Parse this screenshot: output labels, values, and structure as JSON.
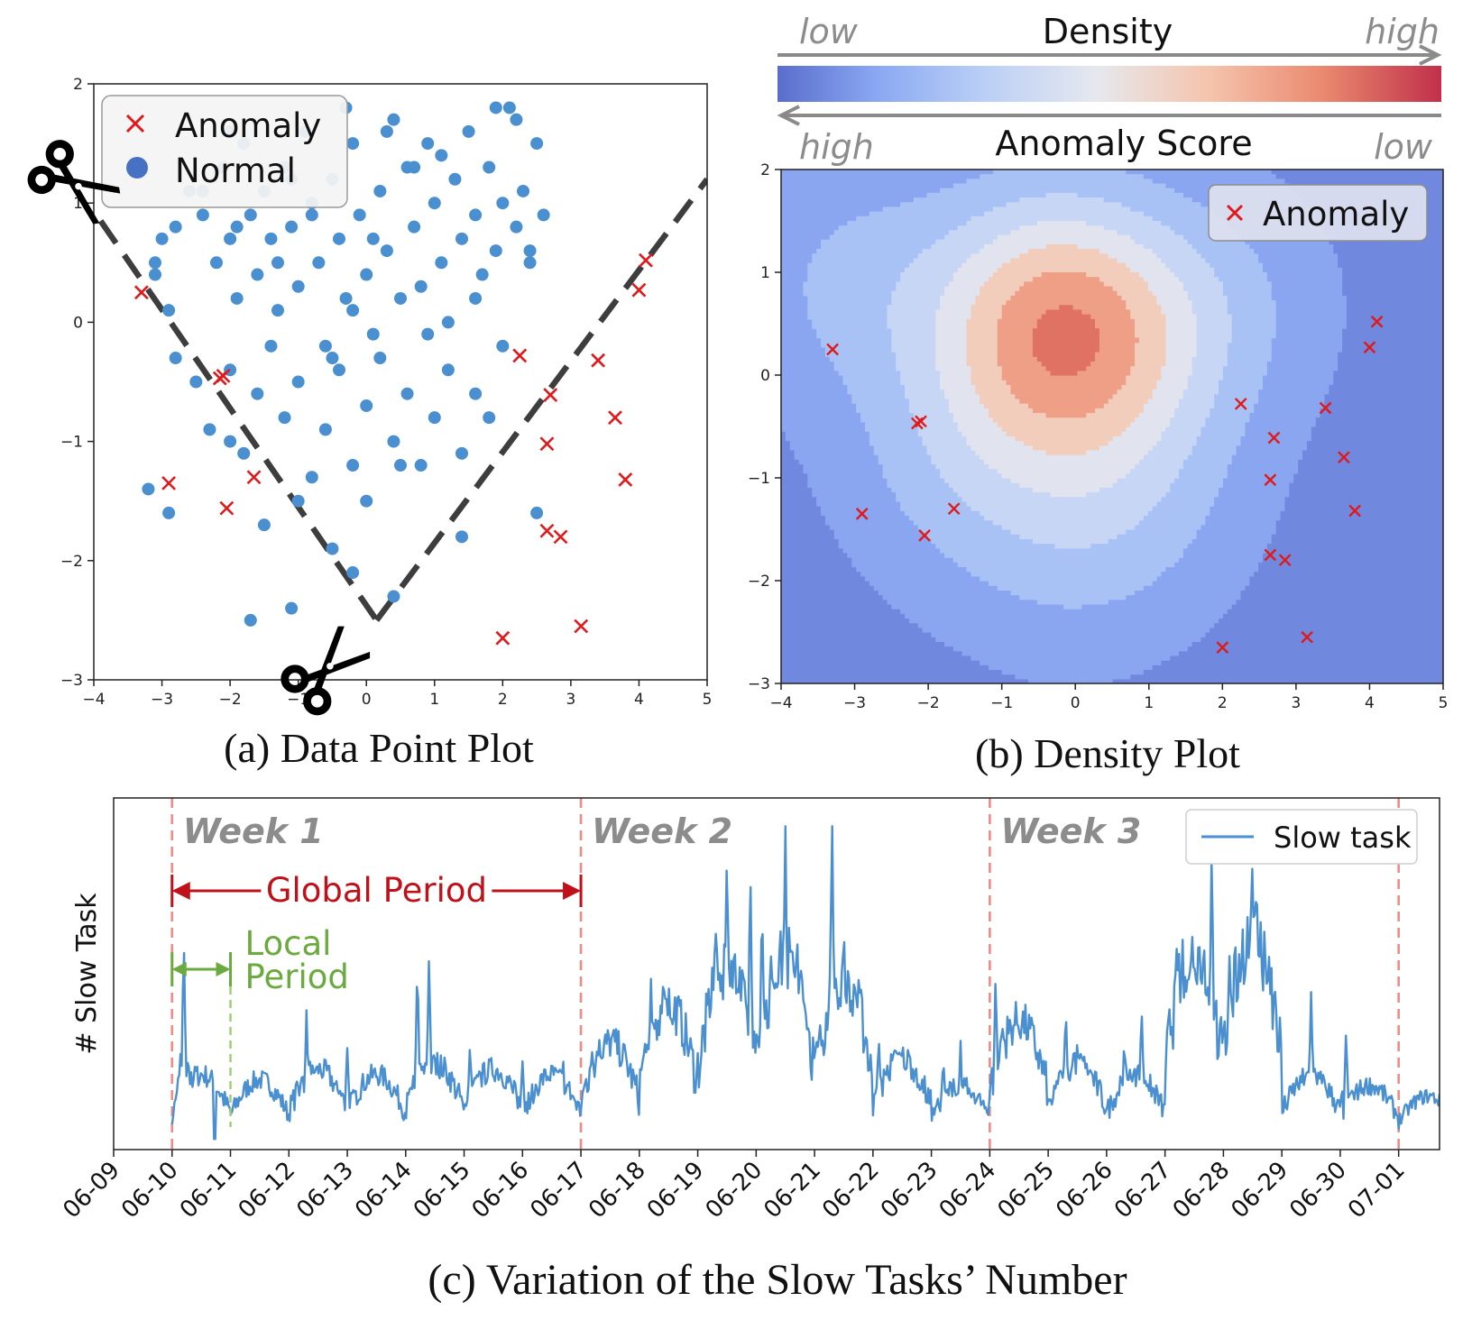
{
  "figure": {
    "captions": {
      "a": "(a) Data Point Plot",
      "b": "(b) Density Plot",
      "c": "(c) Variation of the Slow Tasks’ Number"
    }
  },
  "colors": {
    "normal": "#4a8fcf",
    "anomaly": "#e0191b",
    "cut_line": "#3d3d3d",
    "density_low": "#6f84dc",
    "density_high": "#c0304a",
    "series": "#4a8fcf",
    "week_line": "#f08a85",
    "global_period": "#c0101a",
    "local_period": "#6aaa3e",
    "week_text": "#8c8c8c"
  },
  "chart_data": [
    {
      "id": "a",
      "type": "scatter",
      "title": "(a) Data Point Plot",
      "xlim": [
        -4,
        5
      ],
      "ylim": [
        -3,
        2
      ],
      "xticks": [
        -4,
        -3,
        -2,
        -1,
        0,
        1,
        2,
        3,
        4,
        5
      ],
      "yticks": [
        -3,
        -2,
        -1,
        0,
        1,
        2
      ],
      "legend": {
        "position": "top-left",
        "labels": [
          "Anomaly",
          "Normal"
        ]
      },
      "cut_lines": [
        {
          "from": [
            -3.9,
            0.85
          ],
          "to": [
            0.15,
            -2.5
          ]
        },
        {
          "from": [
            0.15,
            -2.5
          ],
          "to": [
            5,
            1.2
          ]
        }
      ],
      "scissors_icons": 2,
      "anomalies": [
        [
          -3.3,
          0.25
        ],
        [
          -2.9,
          -1.35
        ],
        [
          -2.15,
          -0.47
        ],
        [
          -2.1,
          -0.45
        ],
        [
          -2.05,
          -1.56
        ],
        [
          -1.65,
          -1.3
        ],
        [
          2.0,
          -2.65
        ],
        [
          2.25,
          -0.28
        ],
        [
          2.65,
          -1.02
        ],
        [
          2.7,
          -0.61
        ],
        [
          2.65,
          -1.75
        ],
        [
          2.85,
          -1.8
        ],
        [
          3.15,
          -2.55
        ],
        [
          3.4,
          -0.32
        ],
        [
          3.65,
          -0.8
        ],
        [
          3.8,
          -1.32
        ],
        [
          4.0,
          0.27
        ],
        [
          4.1,
          0.52
        ]
      ],
      "normal": [
        [
          -3.1,
          0.5
        ],
        [
          -3.0,
          0.7
        ],
        [
          -2.9,
          0.1
        ],
        [
          -2.8,
          0.8
        ],
        [
          -2.6,
          1.1
        ],
        [
          -2.4,
          0.9
        ],
        [
          -2.2,
          0.5
        ],
        [
          -2.1,
          1.3
        ],
        [
          -2.0,
          0.7
        ],
        [
          -1.9,
          0.2
        ],
        [
          -1.8,
          1.5
        ],
        [
          -1.7,
          0.9
        ],
        [
          -1.6,
          0.4
        ],
        [
          -1.5,
          1.1
        ],
        [
          -1.4,
          0.7
        ],
        [
          -1.3,
          0.1
        ],
        [
          -1.2,
          1.3
        ],
        [
          -1.1,
          0.8
        ],
        [
          -1.0,
          0.3
        ],
        [
          -0.9,
          1.6
        ],
        [
          -0.8,
          1.0
        ],
        [
          -0.7,
          0.5
        ],
        [
          -0.6,
          -0.2
        ],
        [
          -0.5,
          1.2
        ],
        [
          -0.4,
          0.7
        ],
        [
          -0.3,
          0.2
        ],
        [
          -0.2,
          1.5
        ],
        [
          -0.1,
          0.9
        ],
        [
          0.0,
          0.4
        ],
        [
          0.1,
          -0.1
        ],
        [
          0.2,
          1.1
        ],
        [
          0.3,
          0.6
        ],
        [
          0.4,
          1.7
        ],
        [
          0.5,
          0.2
        ],
        [
          0.6,
          1.3
        ],
        [
          0.7,
          0.8
        ],
        [
          0.8,
          0.3
        ],
        [
          0.9,
          1.5
        ],
        [
          1.0,
          1.0
        ],
        [
          1.1,
          0.5
        ],
        [
          1.2,
          0.0
        ],
        [
          1.3,
          1.2
        ],
        [
          1.4,
          0.7
        ],
        [
          1.5,
          1.6
        ],
        [
          1.6,
          0.9
        ],
        [
          1.7,
          0.4
        ],
        [
          1.8,
          1.3
        ],
        [
          1.9,
          0.6
        ],
        [
          2.0,
          1.0
        ],
        [
          2.1,
          1.8
        ],
        [
          2.2,
          0.8
        ],
        [
          2.3,
          1.1
        ],
        [
          2.4,
          0.5
        ],
        [
          2.5,
          1.5
        ],
        [
          2.6,
          0.9
        ],
        [
          -2.8,
          -0.3
        ],
        [
          -2.5,
          -0.5
        ],
        [
          -2.3,
          -0.9
        ],
        [
          -2.0,
          -0.4
        ],
        [
          -1.8,
          -1.1
        ],
        [
          -1.6,
          -0.6
        ],
        [
          -1.4,
          -0.2
        ],
        [
          -1.2,
          -0.8
        ],
        [
          -1.0,
          -0.5
        ],
        [
          -0.8,
          -1.3
        ],
        [
          -0.6,
          -0.9
        ],
        [
          -0.4,
          -0.4
        ],
        [
          -0.2,
          -1.2
        ],
        [
          0.0,
          -0.7
        ],
        [
          0.2,
          -0.3
        ],
        [
          0.4,
          -1.0
        ],
        [
          0.6,
          -0.6
        ],
        [
          0.8,
          -1.2
        ],
        [
          1.0,
          -0.8
        ],
        [
          1.2,
          -0.4
        ],
        [
          1.4,
          -1.1
        ],
        [
          1.6,
          -0.6
        ],
        [
          1.8,
          -0.8
        ],
        [
          2.0,
          -0.2
        ],
        [
          -2.0,
          -1.0
        ],
        [
          -1.5,
          -1.7
        ],
        [
          -1.0,
          -1.5
        ],
        [
          -0.5,
          -1.9
        ],
        [
          0.0,
          -1.5
        ],
        [
          0.5,
          -1.2
        ],
        [
          -0.2,
          -2.1
        ],
        [
          0.4,
          -2.3
        ],
        [
          -1.1,
          -2.4
        ],
        [
          -1.7,
          -2.5
        ],
        [
          -3.2,
          -1.4
        ],
        [
          -2.9,
          -1.6
        ],
        [
          2.5,
          -1.6
        ],
        [
          1.4,
          -1.8
        ],
        [
          -2.4,
          1.1
        ],
        [
          -1.1,
          1.2
        ],
        [
          0.7,
          1.3
        ],
        [
          -0.3,
          1.8
        ],
        [
          1.9,
          1.8
        ],
        [
          2.2,
          1.7
        ],
        [
          -3.1,
          0.4
        ],
        [
          -2.0,
          1.6
        ],
        [
          0.9,
          -0.1
        ],
        [
          -0.5,
          -0.3
        ],
        [
          1.6,
          0.2
        ],
        [
          -1.3,
          0.5
        ],
        [
          2.4,
          0.6
        ],
        [
          -0.8,
          0.9
        ],
        [
          0.1,
          0.7
        ],
        [
          1.1,
          1.4
        ],
        [
          -1.9,
          0.8
        ],
        [
          0.3,
          1.6
        ],
        [
          -0.2,
          0.1
        ]
      ]
    },
    {
      "id": "b",
      "type": "heatmap",
      "title": "(b) Density Plot",
      "xlim": [
        -4,
        5
      ],
      "ylim": [
        -3,
        2
      ],
      "xticks": [
        -4,
        -3,
        -2,
        -1,
        0,
        1,
        2,
        3,
        4,
        5
      ],
      "yticks": [
        -3,
        -2,
        -1,
        0,
        1,
        2
      ],
      "colorbar": {
        "top_label": "Density",
        "bottom_label": "Anomaly Score",
        "top_left": "low",
        "top_right": "high",
        "bottom_left": "high",
        "bottom_right": "low"
      },
      "legend": {
        "position": "top-right",
        "labels": [
          "Anomaly"
        ]
      },
      "density_levels": [
        0.06,
        0.2,
        0.35,
        0.5,
        0.65,
        0.8,
        0.95
      ],
      "peaks": [
        {
          "x": -3.0,
          "y": 0.9,
          "weight": 0.55
        },
        {
          "x": -0.3,
          "y": 0.85,
          "weight": 1.0
        },
        {
          "x": -0.5,
          "y": 0.2,
          "weight": 0.85
        },
        {
          "x": 0.4,
          "y": 0.1,
          "weight": 0.7
        },
        {
          "x": -1.6,
          "y": -0.9,
          "weight": 0.5
        },
        {
          "x": 0.8,
          "y": -1.2,
          "weight": 0.45
        },
        {
          "x": 1.8,
          "y": 0.7,
          "weight": 0.5
        },
        {
          "x": -0.2,
          "y": -1.8,
          "weight": 0.3
        }
      ],
      "anomalies": [
        [
          -3.3,
          0.25
        ],
        [
          -2.9,
          -1.35
        ],
        [
          -2.15,
          -0.47
        ],
        [
          -2.1,
          -0.45
        ],
        [
          -2.05,
          -1.56
        ],
        [
          -1.65,
          -1.3
        ],
        [
          2.0,
          -2.65
        ],
        [
          2.25,
          -0.28
        ],
        [
          2.65,
          -1.02
        ],
        [
          2.7,
          -0.61
        ],
        [
          2.65,
          -1.75
        ],
        [
          2.85,
          -1.8
        ],
        [
          3.15,
          -2.55
        ],
        [
          3.4,
          -0.32
        ],
        [
          3.65,
          -0.8
        ],
        [
          3.8,
          -1.32
        ],
        [
          4.0,
          0.27
        ],
        [
          4.1,
          0.52
        ]
      ]
    },
    {
      "id": "c",
      "type": "line",
      "title": "(c) Variation of the Slow Tasks’ Number",
      "ylabel": "# Slow Task",
      "categories": [
        "06-09",
        "06-10",
        "06-11",
        "06-12",
        "06-13",
        "06-14",
        "06-15",
        "06-16",
        "06-17",
        "06-18",
        "06-19",
        "06-20",
        "06-21",
        "06-22",
        "06-23",
        "06-24",
        "06-25",
        "06-26",
        "06-27",
        "06-28",
        "06-29",
        "06-30",
        "07-01"
      ],
      "xlim": [
        0,
        22.7
      ],
      "ylim": [
        0,
        100
      ],
      "week_lines": [
        1,
        8,
        15,
        22
      ],
      "week_labels": [
        "Week 1",
        "Week 2",
        "Week 3"
      ],
      "global_period": {
        "label": "Global Period",
        "start": 1,
        "end": 8
      },
      "local_period": {
        "label_line1": "Local",
        "label_line2": "Period",
        "start": 1,
        "end": 2
      },
      "legend": {
        "position": "top-right",
        "labels": [
          "Slow task"
        ]
      },
      "series": [
        {
          "name": "Slow task",
          "daily_base": [
            8,
            12,
            11,
            13,
            12,
            14,
            13,
            12,
            18,
            25,
            32,
            34,
            30,
            15,
            10,
            22,
            14,
            12,
            35,
            38,
            12,
            10,
            8
          ],
          "spikes": [
            [
              1.2,
              58
            ],
            [
              3.3,
              37
            ],
            [
              4.0,
              28
            ],
            [
              5.2,
              50
            ],
            [
              5.4,
              53
            ],
            [
              6.1,
              30
            ],
            [
              7.0,
              25
            ],
            [
              7.7,
              22
            ],
            [
              8.2,
              30
            ],
            [
              9.2,
              48
            ],
            [
              9.4,
              39
            ],
            [
              10.3,
              68
            ],
            [
              10.5,
              88
            ],
            [
              10.9,
              78
            ],
            [
              11.1,
              70
            ],
            [
              11.5,
              92
            ],
            [
              11.7,
              65
            ],
            [
              12.3,
              93
            ],
            [
              12.5,
              66
            ],
            [
              13.1,
              30
            ],
            [
              13.6,
              24
            ],
            [
              14.2,
              25
            ],
            [
              14.5,
              28
            ],
            [
              15.1,
              48
            ],
            [
              16.3,
              40
            ],
            [
              16.5,
              32
            ],
            [
              17.3,
              30
            ],
            [
              17.6,
              40
            ],
            [
              18.2,
              55
            ],
            [
              18.4,
              44
            ],
            [
              18.8,
              86
            ],
            [
              19.1,
              58
            ],
            [
              19.5,
              85
            ],
            [
              19.7,
              62
            ],
            [
              20.5,
              43
            ],
            [
              21.1,
              30
            ]
          ]
        }
      ]
    }
  ]
}
